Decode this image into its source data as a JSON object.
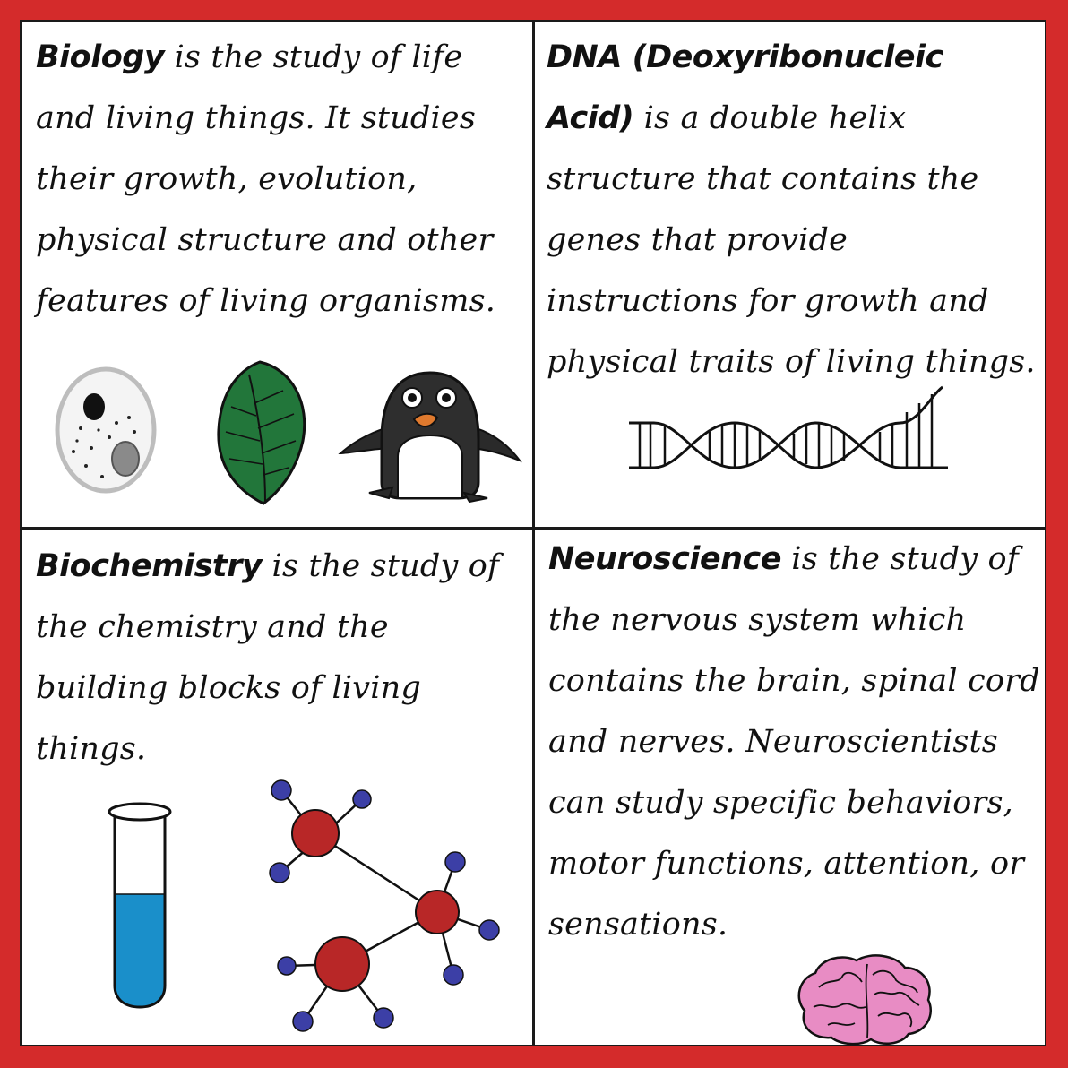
{
  "panels": {
    "biology": {
      "term": "Biology",
      "text": " is the study of life and living things. It studies their growth, evolution, physical structure and other features of living organisms."
    },
    "dna": {
      "term": "DNA (Deoxyribonucleic Acid)",
      "text": " is a double helix structure that contains the genes that provide instructions for growth and physical traits of living things."
    },
    "biochemistry": {
      "term": "Biochemistry",
      "text": " is the study of the chemistry and the building blocks of living things."
    },
    "neuroscience": {
      "term": "Neuroscience",
      "text": " is the study of the nervous system which contains the brain, spinal cord and nerves. Neuroscientists can study specific behaviors, motor functions, attention, or sensations."
    }
  },
  "icons": [
    "cell-icon",
    "leaf-icon",
    "penguin-icon",
    "dna-helix-icon",
    "test-tube-icon",
    "molecule-icon",
    "brain-icon"
  ],
  "colors": {
    "border": "#d42b2b",
    "leaf": "#22763a",
    "tube_liquid": "#1a8fca",
    "atom_red": "#b82727",
    "atom_blue": "#3c3fa6",
    "brain": "#e88cc4",
    "beak": "#e07a2e"
  }
}
